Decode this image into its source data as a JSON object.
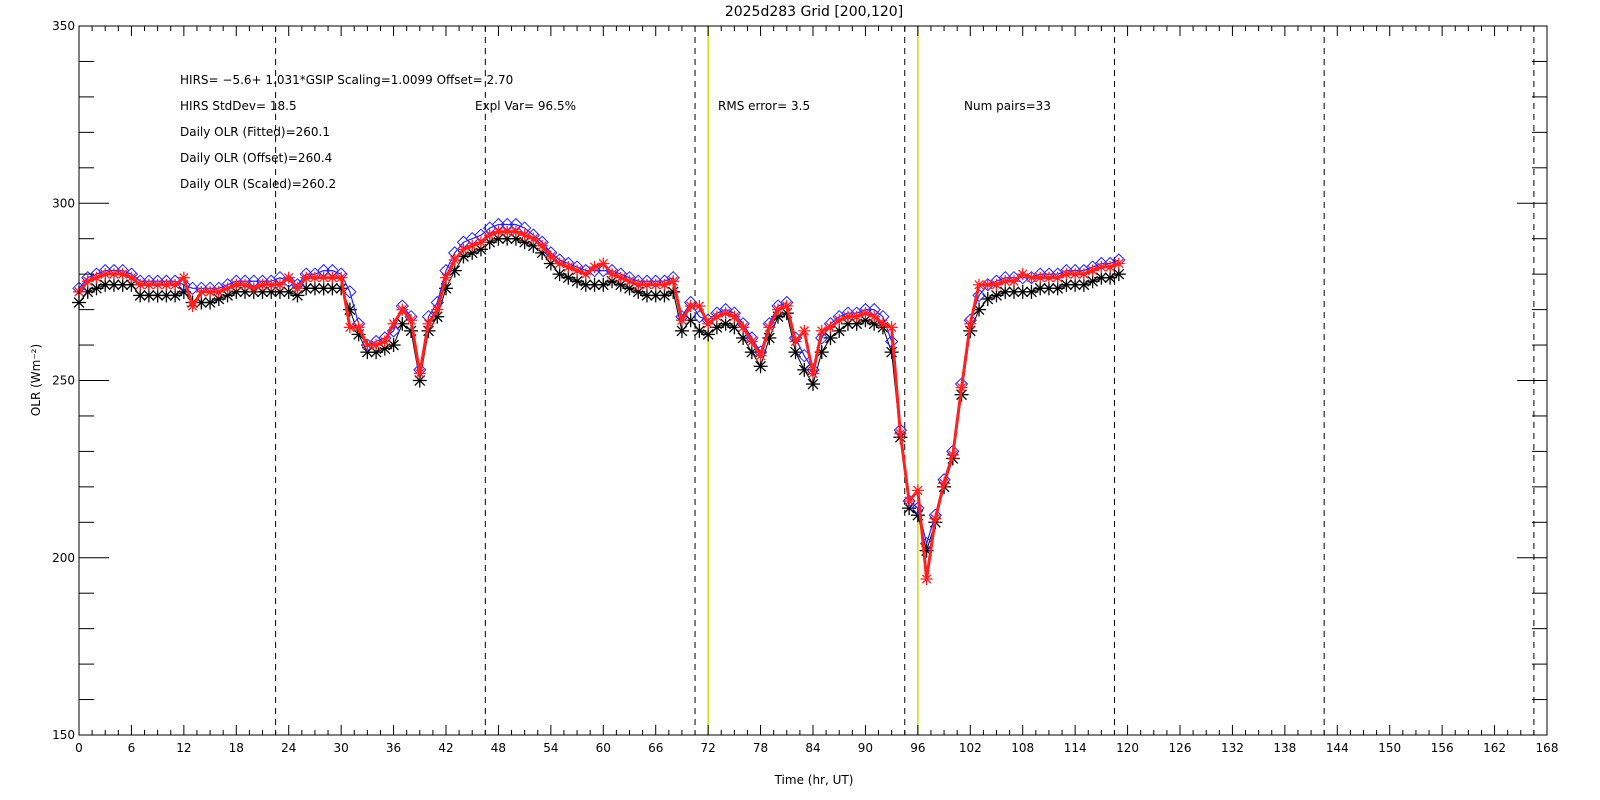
{
  "chart_data": {
    "type": "line",
    "title": "2025d283 Grid [200,120]",
    "xlabel": "Time (hr, UT)",
    "ylabel": "OLR (Wm⁻²)",
    "xlim": [
      0,
      168
    ],
    "ylim": [
      150,
      350
    ],
    "xticks": [
      0,
      6,
      12,
      18,
      24,
      30,
      36,
      42,
      48,
      54,
      60,
      66,
      72,
      78,
      84,
      90,
      96,
      102,
      108,
      114,
      120,
      126,
      132,
      138,
      144,
      150,
      156,
      162,
      168
    ],
    "yticks": [
      150,
      200,
      250,
      300,
      350
    ],
    "grid": false,
    "dashed_vlines": [
      22.5,
      46.5,
      70.5,
      94.5,
      118.5,
      142.5,
      166.5
    ],
    "yellow_vlines": [
      72,
      96
    ],
    "annotations": [
      "HIRS=   −5.6+  1.031*GSIP  Scaling=1.0099  Offset=  2.70",
      "HIRS StdDev= 18.5",
      "Expl Var= 96.5%",
      "RMS error=  3.5",
      "Num pairs=33",
      "Daily OLR (Fitted)=260.1",
      "Daily OLR (Offset)=260.4",
      "Daily OLR (Scaled)=260.2"
    ],
    "x": [
      0,
      1,
      2,
      3,
      4,
      5,
      6,
      7,
      8,
      9,
      10,
      11,
      12,
      13,
      14,
      15,
      16,
      17,
      18,
      19,
      20,
      21,
      22,
      23,
      24,
      25,
      26,
      27,
      28,
      29,
      30,
      31,
      32,
      33,
      34,
      35,
      36,
      37,
      38,
      39,
      40,
      41,
      42,
      43,
      44,
      45,
      46,
      47,
      48,
      49,
      50,
      51,
      52,
      53,
      54,
      55,
      56,
      57,
      58,
      59,
      60,
      61,
      62,
      63,
      64,
      65,
      66,
      67,
      68,
      69,
      70,
      71,
      72,
      73,
      74,
      75,
      76,
      77,
      78,
      79,
      80,
      81,
      82,
      83,
      84,
      85,
      86,
      87,
      88,
      89,
      90,
      91,
      92,
      93,
      94,
      95,
      96,
      97,
      98,
      99,
      100,
      101,
      102,
      103,
      104,
      105,
      106,
      107,
      108,
      109,
      110,
      111,
      112,
      113,
      114,
      115,
      116,
      117,
      118,
      119
    ],
    "series": [
      {
        "style": "black-asterisk",
        "color": "#000000",
        "values": [
          272,
          275,
          276,
          277,
          277,
          277,
          277,
          274,
          274,
          274,
          274,
          274,
          275,
          272,
          272,
          272,
          273,
          274,
          275,
          275,
          275,
          275,
          275,
          275,
          275,
          274,
          276,
          276,
          276,
          276,
          276,
          270,
          263,
          258,
          258,
          259,
          260,
          266,
          264,
          250,
          264,
          268,
          276,
          281,
          285,
          286,
          287,
          289,
          290,
          290,
          290,
          289,
          288,
          286,
          283,
          280,
          279,
          278,
          277,
          277,
          277,
          278,
          277,
          276,
          275,
          274,
          274,
          274,
          275,
          264,
          267,
          264,
          263,
          265,
          266,
          265,
          262,
          258,
          254,
          262,
          268,
          269,
          258,
          253,
          249,
          258,
          262,
          264,
          266,
          266,
          267,
          266,
          265,
          258,
          234,
          214,
          212,
          202,
          210,
          220,
          228,
          246,
          264,
          270,
          273,
          274,
          275,
          275,
          275,
          275,
          276,
          276,
          276,
          277,
          277,
          277,
          278,
          279,
          279,
          280
        ]
      },
      {
        "style": "blue-diamond",
        "color": "#2222ff",
        "values": [
          276,
          279,
          280,
          281,
          281,
          281,
          280,
          278,
          278,
          278,
          278,
          278,
          277,
          276,
          276,
          276,
          276,
          277,
          278,
          278,
          278,
          278,
          278,
          279,
          278,
          277,
          280,
          280,
          281,
          281,
          280,
          275,
          266,
          260,
          261,
          262,
          264,
          271,
          268,
          253,
          268,
          272,
          281,
          286,
          289,
          290,
          291,
          293,
          294,
          294,
          294,
          293,
          291,
          289,
          286,
          284,
          283,
          282,
          281,
          281,
          281,
          281,
          280,
          279,
          278,
          278,
          278,
          278,
          279,
          268,
          272,
          268,
          267,
          269,
          270,
          269,
          266,
          262,
          258,
          266,
          271,
          272,
          262,
          257,
          253,
          262,
          266,
          268,
          269,
          269,
          270,
          270,
          268,
          261,
          236,
          216,
          214,
          204,
          212,
          222,
          230,
          249,
          267,
          274,
          277,
          278,
          279,
          279,
          279,
          279,
          280,
          280,
          280,
          281,
          281,
          281,
          282,
          283,
          283,
          284
        ]
      },
      {
        "style": "red-asterisk-line",
        "color": "#ff2020",
        "values": [
          275,
          278,
          279,
          280,
          280,
          280,
          279,
          277,
          277,
          277,
          277,
          277,
          279,
          271,
          275,
          275,
          275,
          276,
          277,
          277,
          276,
          277,
          277,
          277,
          279,
          276,
          279,
          279,
          279,
          279,
          279,
          265,
          265,
          260,
          260,
          261,
          266,
          270,
          267,
          252,
          266,
          270,
          279,
          284,
          287,
          288,
          289,
          291,
          292,
          292,
          292,
          291,
          290,
          288,
          285,
          283,
          282,
          281,
          280,
          282,
          283,
          280,
          279,
          278,
          277,
          277,
          277,
          277,
          278,
          267,
          271,
          271,
          266,
          268,
          269,
          268,
          265,
          261,
          257,
          265,
          270,
          271,
          261,
          264,
          252,
          264,
          265,
          267,
          268,
          268,
          269,
          268,
          266,
          265,
          235,
          216,
          219,
          194,
          211,
          221,
          229,
          248,
          266,
          277,
          277,
          277,
          278,
          278,
          280,
          279,
          279,
          279,
          279,
          280,
          280,
          280,
          281,
          282,
          282,
          283
        ]
      }
    ]
  }
}
